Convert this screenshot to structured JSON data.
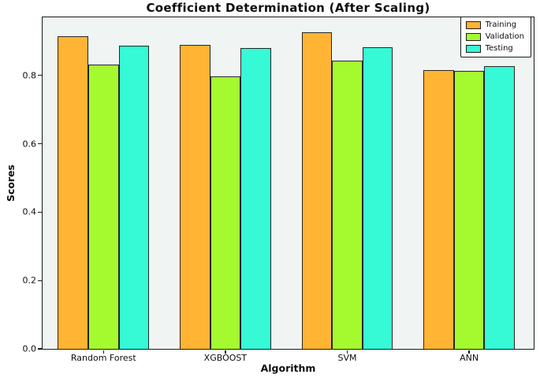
{
  "chart_data": {
    "type": "bar",
    "title": "Coefficient Determination (After Scaling)",
    "xlabel": "Algorithm",
    "ylabel": "Scores",
    "categories": [
      "Random Forest",
      "XGBOOST",
      "SVM",
      "ANN"
    ],
    "series": [
      {
        "name": "Training",
        "color": "#FFB434",
        "values": [
          0.915,
          0.889,
          0.926,
          0.815
        ]
      },
      {
        "name": "Validation",
        "color": "#A5FA2F",
        "values": [
          0.832,
          0.798,
          0.843,
          0.814
        ]
      },
      {
        "name": "Testing",
        "color": "#36F9D6",
        "values": [
          0.887,
          0.88,
          0.883,
          0.827
        ]
      }
    ],
    "ytick_labels": [
      "0.0",
      "0.2",
      "0.4",
      "0.6",
      "0.8"
    ],
    "ytick_values": [
      0.0,
      0.2,
      0.4,
      0.6,
      0.8
    ],
    "ylim": [
      0,
      0.97
    ],
    "xlim": [
      -0.5,
      3.53
    ],
    "bar_width_units": 0.25,
    "grid": false,
    "legend_position": "upper right",
    "legend_title": "",
    "bar_edge_color": "#262626",
    "plot_bg": "#f0f5f3",
    "figure_bg": "#ffffff"
  }
}
